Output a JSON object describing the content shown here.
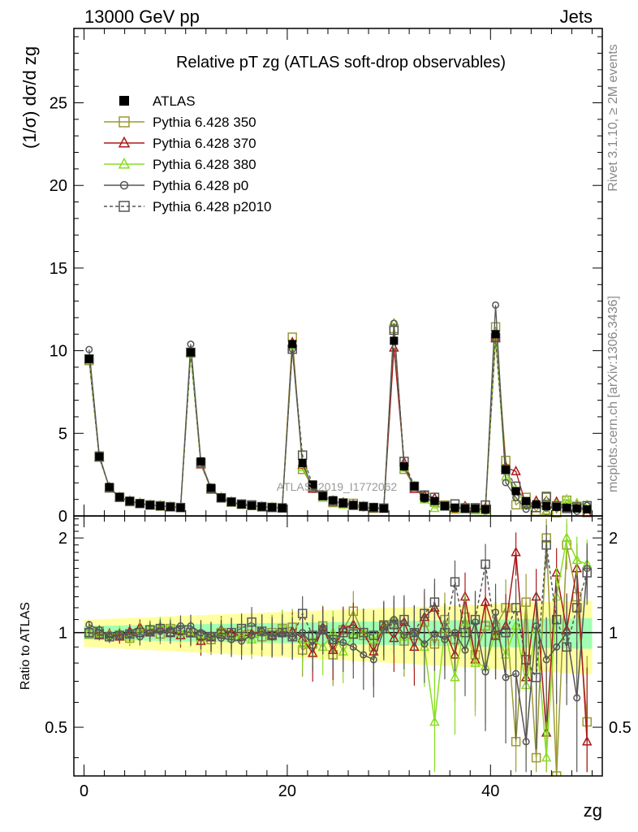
{
  "header": {
    "left": "13000 GeV pp",
    "right": "Jets"
  },
  "side_labels": {
    "rivet": "Rivet 3.1.10, ≥ 2M events",
    "mcplots": "mcplots.cern.ch [arXiv:1306.3436]"
  },
  "watermark": "ATLAS_2019_I1772062",
  "chart_data": {
    "type": "line",
    "title": "Relative pT zg (ATLAS soft-drop observables)",
    "xlabel": "zg",
    "ylabel": "(1/σ) dσ/d zg",
    "ratio_ylabel": "Ratio to ATLAS",
    "xlim": [
      -1,
      51
    ],
    "ylim": [
      0,
      29.5
    ],
    "ratio_ylim": [
      0.35,
      2.35
    ],
    "x_ticks": [
      0,
      20,
      40
    ],
    "y_ticks": [
      0,
      5,
      10,
      15,
      20,
      25
    ],
    "ratio_ticks": [
      0.5,
      1,
      2
    ],
    "legend_position": "top-left",
    "x": [
      0.5,
      1.5,
      2.5,
      3.5,
      4.5,
      5.5,
      6.5,
      7.5,
      8.5,
      9.5,
      10.5,
      11.5,
      12.5,
      13.5,
      14.5,
      15.5,
      16.5,
      17.5,
      18.5,
      19.5,
      20.5,
      21.5,
      22.5,
      23.5,
      24.5,
      25.5,
      26.5,
      27.5,
      28.5,
      29.5,
      30.5,
      31.5,
      32.5,
      33.5,
      34.5,
      35.5,
      36.5,
      37.5,
      38.5,
      39.5,
      40.5,
      41.5,
      42.5,
      43.5,
      44.5,
      45.5,
      46.5,
      47.5,
      48.5,
      49.5
    ],
    "data": {
      "name": "ATLAS",
      "values": [
        9.5,
        3.6,
        1.75,
        1.15,
        0.9,
        0.75,
        0.65,
        0.6,
        0.55,
        0.5,
        9.9,
        3.3,
        1.7,
        1.1,
        0.85,
        0.7,
        0.62,
        0.56,
        0.52,
        0.48,
        10.4,
        3.2,
        1.9,
        1.2,
        0.95,
        0.78,
        0.65,
        0.58,
        0.52,
        0.45,
        10.6,
        3.0,
        1.8,
        1.1,
        0.9,
        0.6,
        0.5,
        0.45,
        0.45,
        0.4,
        11.0,
        2.8,
        1.5,
        0.9,
        0.7,
        0.6,
        0.55,
        0.5,
        0.45,
        0.4
      ],
      "ratio_band_inner": 0.05,
      "ratio_band_outer": 0.1
    },
    "series": [
      {
        "name": "Pythia 6.428 350",
        "color": "#9a9a33",
        "marker": "square-open",
        "dash": false,
        "ratio": [
          0.99,
          1.01,
          0.97,
          0.98,
          0.96,
          1.0,
          1.02,
          0.99,
          1.03,
          1.01,
          1.0,
          0.97,
          0.95,
          1.0,
          0.98,
          1.01,
          1.02,
          0.97,
          1.0,
          1.03,
          1.04,
          0.88,
          0.92,
          1.05,
          0.85,
          1.02,
          1.17,
          0.98,
          0.9,
          1.06,
          1.07,
          0.94,
          0.98,
          1.08,
          0.92,
          1.1,
          0.95,
          1.12,
          0.85,
          1.05,
          1.04,
          1.2,
          0.45,
          1.25,
          0.4,
          2.0,
          0.35,
          1.9,
          1.3,
          0.52
        ]
      },
      {
        "name": "Pythia 6.428 370",
        "color": "#aa1a1a",
        "marker": "triangle-open",
        "dash": false,
        "ratio": [
          1.0,
          0.98,
          0.99,
          0.97,
          1.01,
          1.04,
          1.0,
          1.03,
          1.0,
          0.98,
          1.0,
          0.94,
          0.97,
          1.02,
          1.0,
          0.97,
          0.99,
          1.01,
          0.98,
          1.0,
          1.01,
          0.96,
          0.86,
          1.04,
          0.88,
          1.03,
          1.06,
          1.0,
          0.87,
          1.05,
          0.96,
          1.08,
          0.9,
          1.12,
          1.2,
          1.02,
          0.85,
          1.3,
          0.82,
          1.25,
          0.98,
          1.05,
          1.8,
          0.72,
          1.3,
          0.48,
          1.55,
          1.02,
          1.6,
          0.45
        ]
      },
      {
        "name": "Pythia 6.428 380",
        "color": "#88dd22",
        "marker": "triangle-open",
        "dash": false,
        "ratio": [
          1.0,
          0.99,
          0.98,
          1.0,
          0.97,
          1.02,
          1.03,
          1.05,
          1.04,
          1.0,
          0.99,
          0.96,
          0.98,
          1.01,
          0.96,
          0.98,
          0.95,
          1.0,
          0.97,
          1.04,
          0.99,
          0.92,
          0.95,
          0.9,
          1.0,
          0.87,
          0.98,
          1.0,
          0.95,
          1.03,
          1.1,
          0.97,
          1.0,
          0.9,
          0.52,
          1.02,
          0.72,
          1.08,
          0.8,
          0.78,
          1.0,
          0.85,
          1.05,
          0.68,
          1.02,
          0.4,
          1.3,
          2.0,
          1.7,
          1.65
        ]
      },
      {
        "name": "Pythia 6.428 p0",
        "color": "#555555",
        "marker": "circle-open",
        "dash": false,
        "ratio": [
          1.06,
          1.02,
          0.97,
          0.98,
          0.99,
          0.97,
          1.0,
          1.01,
          1.02,
          1.05,
          1.05,
          1.0,
          0.98,
          0.96,
          0.95,
          0.94,
          0.98,
          1.01,
          0.97,
          0.99,
          0.97,
          1.0,
          0.91,
          1.02,
          0.94,
          0.93,
          0.9,
          0.85,
          0.82,
          1.02,
          1.1,
          0.98,
          1.0,
          0.92,
          0.99,
          0.95,
          1.0,
          0.88,
          1.08,
          0.75,
          1.16,
          0.72,
          0.74,
          0.45,
          1.05,
          0.82,
          0.9,
          1.0,
          0.62,
          1.6
        ]
      },
      {
        "name": "Pythia 6.428 p2010",
        "color": "#555555",
        "marker": "square-open",
        "dash": true,
        "ratio": [
          1.0,
          0.99,
          0.97,
          0.98,
          0.99,
          1.0,
          1.02,
          1.03,
          1.0,
          1.02,
          1.0,
          0.98,
          0.97,
          0.99,
          1.0,
          1.03,
          1.08,
          1.01,
          0.98,
          1.0,
          0.97,
          1.15,
          0.98,
          1.02,
          0.95,
          1.0,
          0.99,
          1.0,
          0.98,
          1.05,
          1.06,
          1.1,
          1.0,
          1.15,
          1.25,
          1.0,
          1.45,
          1.0,
          1.1,
          1.65,
          0.98,
          1.0,
          1.2,
          0.82,
          0.72,
          1.9,
          1.1,
          0.9,
          1.2,
          1.55
        ]
      }
    ]
  }
}
